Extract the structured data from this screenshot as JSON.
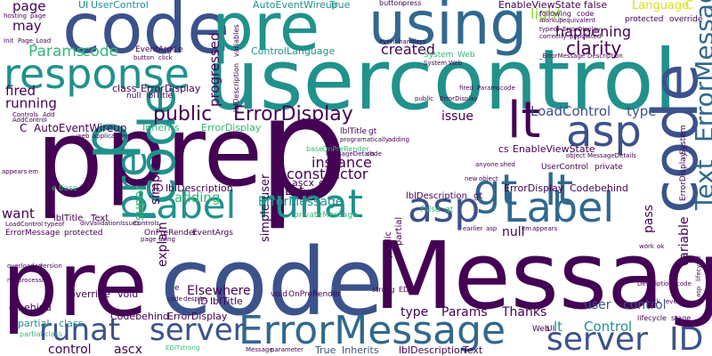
{
  "palette": {
    "background": "#ffffff",
    "dark_purple": "#440154",
    "indigo": "#3b528b",
    "blue": "#31688e",
    "teal": "#21918c",
    "green": "#35b779",
    "lime": "#90d743",
    "yellow": "#d8e219"
  },
  "words": [
    "p",
    "pre",
    "usercontrol",
    "code",
    "pre",
    "using",
    "code",
    "Message",
    "pre",
    "response",
    "p",
    "lt",
    "asp",
    "asp",
    "Label",
    "gt",
    "lt",
    "Label",
    "runat",
    "ErrorMessage",
    "runat",
    "server",
    "server",
    "ID",
    "code",
    "code",
    "p",
    "pre",
    "Text",
    "_ErrorMessage",
    "public",
    "ErrorDisplay",
    "Params",
    "code",
    "LoadControl",
    "type",
    "light",
    "happening",
    "clarity",
    "created",
    "instance",
    "constructor",
    "Let",
    "ErrorMessage",
    "lt",
    "Control",
    "Elsewhere",
    "Thanks",
    "user",
    "control",
    "control",
    "ascx",
    "type",
    "Params",
    "fired",
    "running",
    "Language",
    "C",
    "progressed",
    "may",
    "page",
    "want",
    "adding",
    "super",
    "simple",
    "explain",
    "variable",
    "pass",
    "null",
    "issue",
    "AutoEventWireup",
    "True",
    "UI",
    "UserControl",
    "EnableViewState",
    "false",
    "cs",
    "EnableViewState",
    "ErrorDisplay",
    "Codebehind",
    "partial",
    "class",
    "ID",
    "lblDescription",
    "ID",
    "lblTitle",
    "True",
    "Inherits",
    "lblDescription",
    "Text",
    "C",
    "AutoEventWireup",
    "Inherits",
    "ErrorDisplay",
    "class",
    "ErrorDisplay",
    "Control",
    "Language",
    "System",
    "Web",
    "lblTitle",
    "gt",
    "c",
    "behind",
    "override",
    "void",
    "EventArgs",
    "e",
    "null",
    "lblTitle",
    "lblDescription",
    "gt",
    "simple",
    "user",
    "ascx",
    "cs",
    "private",
    "Message",
    "base",
    "OnPreRender",
    "void",
    "OnPreRender",
    "e",
    "lblTitle",
    "Text",
    "strong",
    "EDIT",
    "Web",
    "UI",
    "UserControl",
    "private",
    "button",
    "press",
    "following",
    "code",
    "protected",
    "override",
    "lblDescription",
    "variables",
    "Init",
    "Page_Load",
    "hosting",
    "page",
    "button",
    "click",
    "Controls",
    "Add",
    "AddControl",
    "web",
    "application",
    "appears",
    "em",
    "LoadControl",
    "typeof",
    "divValidationIssues",
    "Controls",
    "ErrorMessage",
    "protected",
    "overloaded",
    "version",
    "now",
    "processing",
    "partial",
    "class",
    "Codebehind",
    "ErrorDisplay",
    "Message",
    "parameter",
    "EDIT",
    "strong",
    "lifecycle",
    "stage",
    "click",
    "event",
    "asp",
    "lifecycle",
    "ErrorDisplay",
    "System",
    "object",
    "MessageDetails",
    "anyone",
    "shed",
    "public",
    "partial",
    "programatically",
    "adding",
    "MessageDetails",
    "code",
    "earlier",
    "asp",
    "em",
    "appears",
    "work",
    "ok",
    "event",
    "handlers",
    "markup",
    "equivalent",
    "correctly",
    "populated",
    "_ErrorMessage",
    "Description",
    "typeof",
    "ErrorDisplay",
    "new",
    "object",
    "False",
    "gt",
    "Description",
    "code",
    "page",
    "using",
    "code",
    "despite",
    "OnPreRender",
    "EventArgs",
    "System",
    "Web",
    "fired",
    "Params",
    "code",
    "public",
    "ErrorDisplay",
    "e",
    "base"
  ]
}
